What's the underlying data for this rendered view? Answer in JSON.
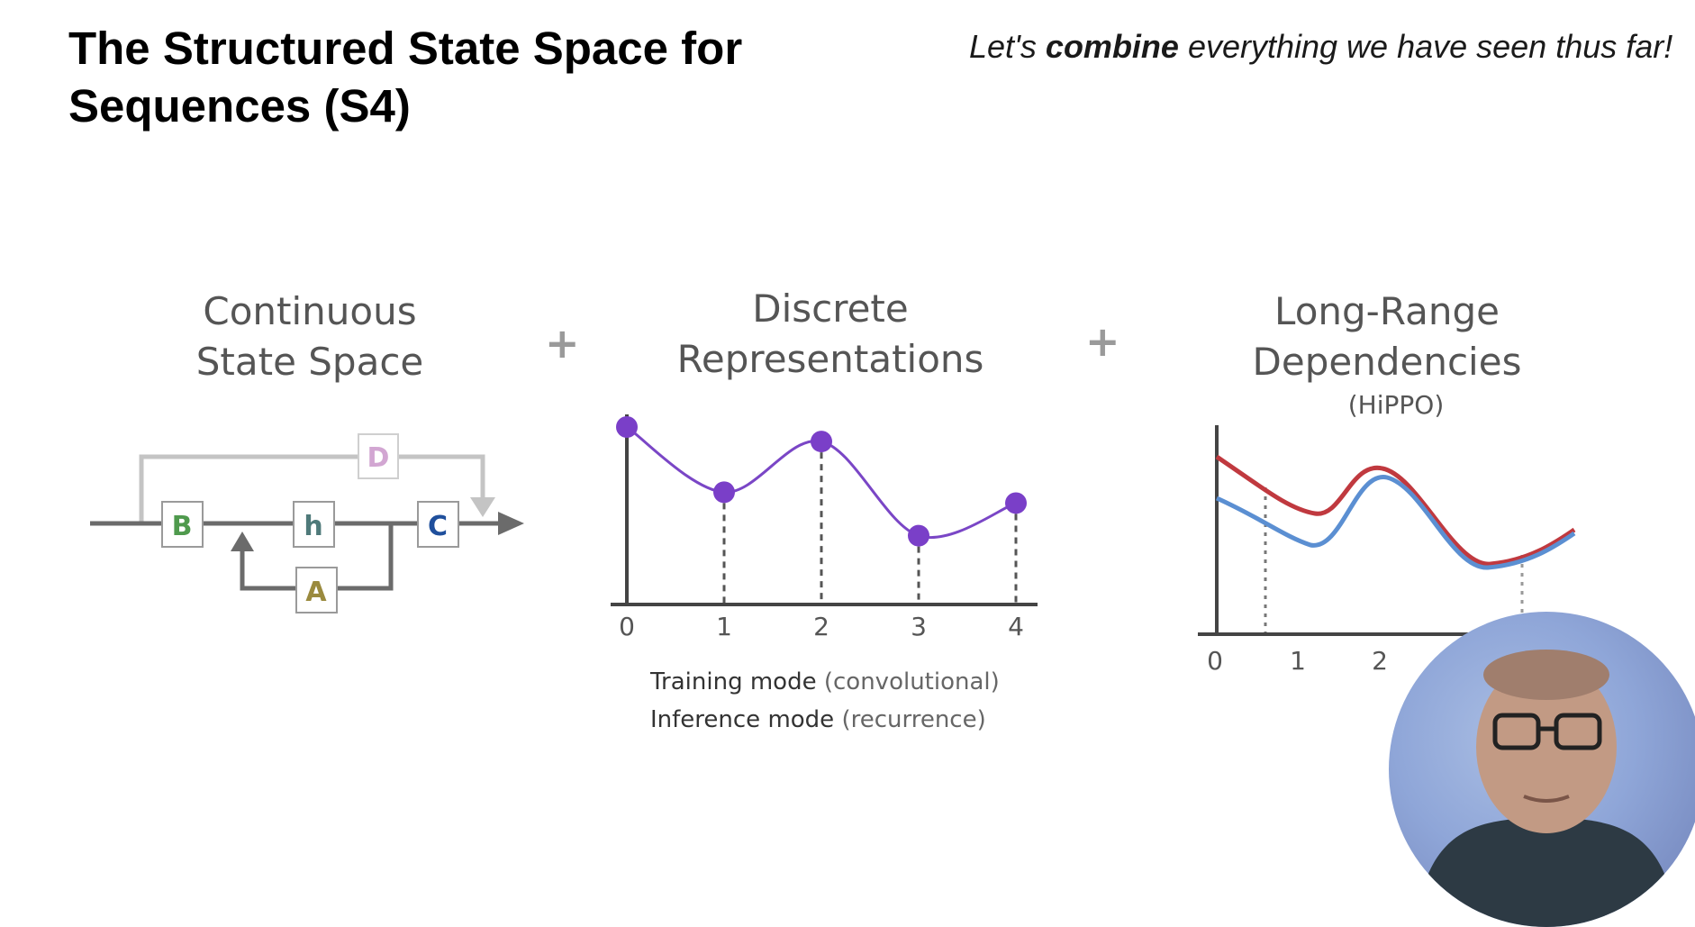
{
  "title": "The Structured State Space for Sequences (S4)",
  "subtitle": {
    "prefix": "Let's ",
    "bold": "combine",
    "suffix": " everything we have seen thus far!"
  },
  "columns": [
    {
      "heading_lines": [
        "Continuous",
        "State Space"
      ]
    },
    {
      "heading_lines": [
        "Discrete",
        "Representations"
      ]
    },
    {
      "heading_lines": [
        "Long-Range",
        "Dependencies"
      ],
      "tag": "(HiPPO)"
    }
  ],
  "plus_sign": "+",
  "state_space_diagram": {
    "blocks": {
      "B": "B",
      "h": "h",
      "C": "C",
      "A": "A",
      "D": "D"
    },
    "colors": {
      "B": "#4f9a4d",
      "h": "#4f7a7a",
      "C": "#1f4f9c",
      "A": "#9a8a3e",
      "D": "#d2a6d2"
    }
  },
  "discrete_chart": {
    "type": "line",
    "x": [
      0,
      1,
      2,
      3,
      4
    ],
    "tick_labels": [
      "0",
      "1",
      "2",
      "3",
      "4"
    ],
    "y": [
      0.98,
      0.62,
      0.9,
      0.38,
      0.56
    ],
    "line_color": "#7a46c6",
    "point_color": "#7a3fc8"
  },
  "modes": [
    {
      "mode": "Training mode",
      "note": "(convolutional)"
    },
    {
      "mode": "Inference mode",
      "note": "(recurrence)"
    }
  ],
  "hippo_chart": {
    "type": "line",
    "tick_labels": [
      "0",
      "1",
      "2"
    ],
    "colors": {
      "red": "#c0393f",
      "blue": "#5b8fd2"
    }
  },
  "webcam": {
    "label": "presenter webcam"
  }
}
